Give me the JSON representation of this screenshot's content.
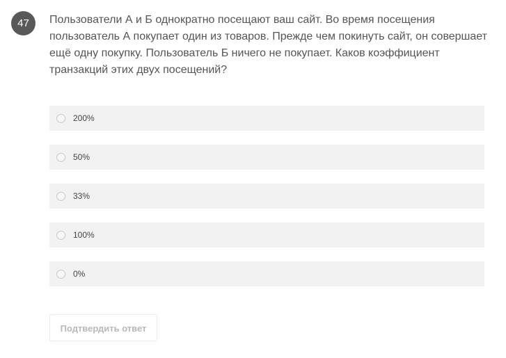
{
  "question": {
    "number": "47",
    "text": "Пользователи А и Б однократно посещают ваш сайт. Во время посещения пользователь А покупает один из товаров. Прежде чем покинуть сайт, он совершает ещё одну покупку. Пользователь Б ничего не покупает. Каков коэффициент транзакций этих двух посещений?"
  },
  "options": [
    {
      "label": "200%",
      "selected": false
    },
    {
      "label": "50%",
      "selected": false
    },
    {
      "label": "33%",
      "selected": false
    },
    {
      "label": "100%",
      "selected": false
    },
    {
      "label": "0%",
      "selected": false
    }
  ],
  "submit": {
    "label": "Подтвердить ответ",
    "enabled": false
  }
}
